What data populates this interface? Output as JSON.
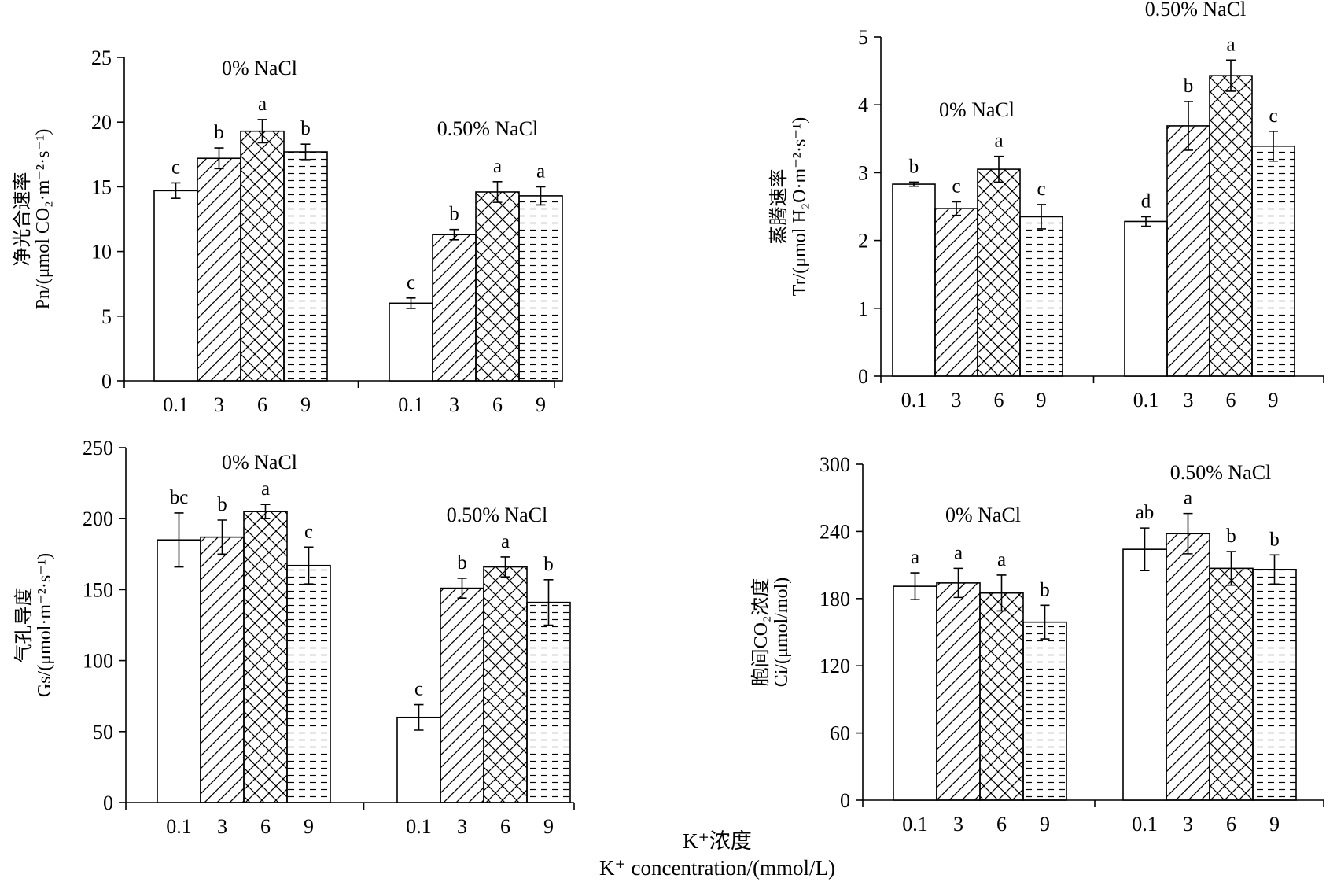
{
  "chart_data": [
    {
      "type": "bar",
      "ylabel_line1": "净光合速率",
      "ylabel_line2": "Pn/(μmol CO₂·m⁻²·s⁻¹)",
      "ylim": [
        0,
        25
      ],
      "yticks": [
        0,
        5,
        10,
        15,
        20,
        25
      ],
      "categories": [
        "0.1",
        "3",
        "6",
        "9"
      ],
      "groups": [
        {
          "name": "0% NaCl",
          "values": [
            14.7,
            17.2,
            19.3,
            17.7
          ],
          "errors": [
            0.6,
            0.8,
            0.9,
            0.6
          ],
          "letters": [
            "c",
            "b",
            "a",
            "b"
          ]
        },
        {
          "name": "0.50% NaCl",
          "values": [
            6.0,
            11.3,
            14.6,
            14.3
          ],
          "errors": [
            0.4,
            0.4,
            0.8,
            0.7
          ],
          "letters": [
            "c",
            "b",
            "a",
            "a"
          ]
        }
      ]
    },
    {
      "type": "bar",
      "ylabel_line1": "蒸腾速率",
      "ylabel_line2": "Tr/(μmol H₂O·m⁻²·s⁻¹)",
      "ylim": [
        0,
        5
      ],
      "yticks": [
        0,
        1,
        2,
        3,
        4,
        5
      ],
      "categories": [
        "0.1",
        "3",
        "6",
        "9"
      ],
      "groups": [
        {
          "name": "0% NaCl",
          "values": [
            2.83,
            2.47,
            3.05,
            2.35
          ],
          "errors": [
            0.03,
            0.1,
            0.19,
            0.18
          ],
          "letters": [
            "b",
            "c",
            "a",
            "c"
          ]
        },
        {
          "name": "0.50% NaCl",
          "values": [
            2.28,
            3.69,
            4.43,
            3.39
          ],
          "errors": [
            0.07,
            0.36,
            0.23,
            0.22
          ],
          "letters": [
            "d",
            "b",
            "a",
            "c"
          ]
        }
      ]
    },
    {
      "type": "bar",
      "ylabel_line1": "气孔导度",
      "ylabel_line2": "Gs/(μmol·m⁻²·s⁻¹)",
      "ylim": [
        0,
        250
      ],
      "yticks": [
        0,
        50,
        100,
        150,
        200,
        250
      ],
      "categories": [
        "0.1",
        "3",
        "6",
        "9"
      ],
      "groups": [
        {
          "name": "0% NaCl",
          "values": [
            185,
            187,
            205,
            167
          ],
          "errors": [
            19,
            12,
            5,
            13
          ],
          "letters": [
            "bc",
            "b",
            "a",
            "c"
          ]
        },
        {
          "name": "0.50% NaCl",
          "values": [
            60,
            151,
            166,
            141
          ],
          "errors": [
            9,
            7,
            7,
            16
          ],
          "letters": [
            "c",
            "b",
            "a",
            "b"
          ]
        }
      ]
    },
    {
      "type": "bar",
      "ylabel_line1": "胞间CO₂浓度",
      "ylabel_line2": "Ci/(μmol/mol)",
      "ylim": [
        0,
        300
      ],
      "yticks": [
        0,
        60,
        120,
        180,
        240,
        300
      ],
      "categories": [
        "0.1",
        "3",
        "6",
        "9"
      ],
      "groups": [
        {
          "name": "0% NaCl",
          "values": [
            191,
            194,
            185,
            159
          ],
          "errors": [
            12,
            13,
            16,
            15
          ],
          "letters": [
            "a",
            "a",
            "a",
            "b"
          ]
        },
        {
          "name": "0.50% NaCl",
          "values": [
            224,
            238,
            207,
            206
          ],
          "errors": [
            19,
            18,
            15,
            13
          ],
          "letters": [
            "ab",
            "a",
            "b",
            "b"
          ]
        }
      ]
    }
  ],
  "xlabel_cn": "K⁺浓度",
  "xlabel_en": "K⁺ concentration/(mmol/L)",
  "patterns": [
    "blank",
    "diagonal-hatch",
    "cross-hatch",
    "dashed-horizontal"
  ]
}
